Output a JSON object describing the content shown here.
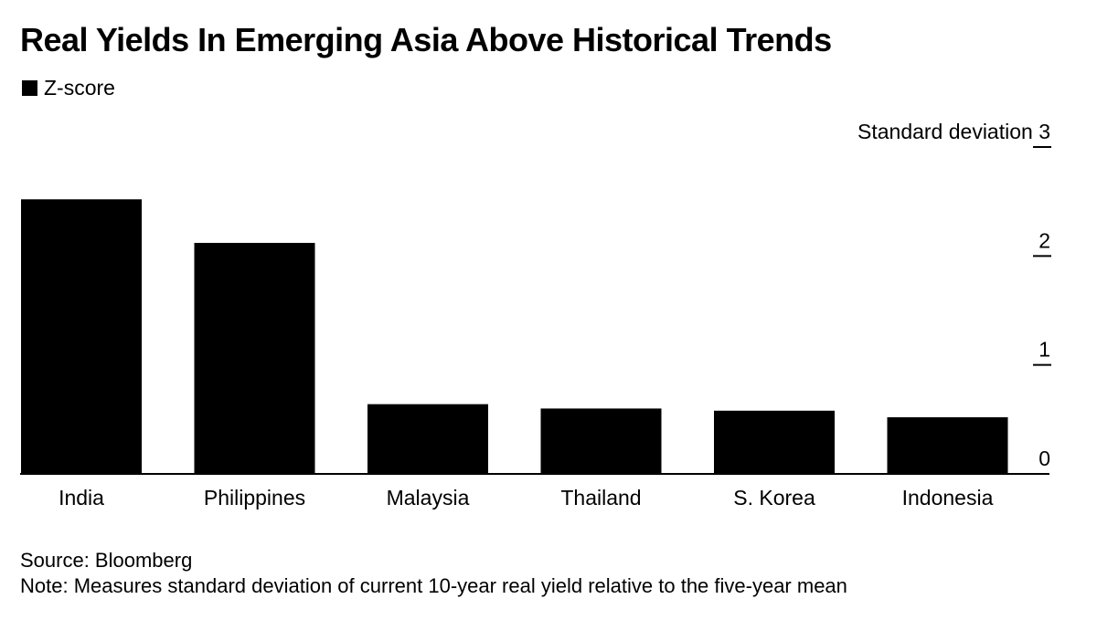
{
  "chart_data": {
    "type": "bar",
    "title": "Real Yields In Emerging Asia Above Historical Trends",
    "legend": [
      {
        "label": "Z-score",
        "color": "#000000"
      }
    ],
    "legend_position": "top-left",
    "categories": [
      "India",
      "Philippines",
      "Malaysia",
      "Thailand",
      "S. Korea",
      "Indonesia"
    ],
    "series": [
      {
        "name": "Z-score",
        "color": "#000000",
        "values": [
          2.52,
          2.12,
          0.64,
          0.6,
          0.58,
          0.52
        ]
      }
    ],
    "ylabel": "Standard deviation",
    "ylim": [
      0,
      3
    ],
    "yticks": [
      0,
      1,
      2,
      3
    ],
    "y_axis_side": "right",
    "grid": false
  },
  "footer": {
    "source": "Source: Bloomberg",
    "note": "Note: Measures standard deviation of current 10-year real yield relative to the five-year mean"
  }
}
